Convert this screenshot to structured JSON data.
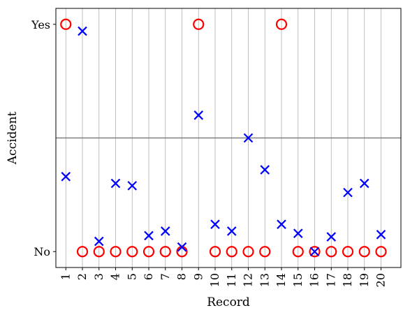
{
  "chart_data": {
    "type": "scatter",
    "title": "",
    "xlabel": "Record",
    "ylabel": "Accident",
    "x_ticks": [
      "1",
      "2",
      "3",
      "4",
      "5",
      "6",
      "7",
      "8",
      "9",
      "10",
      "11",
      "12",
      "13",
      "14",
      "15",
      "16",
      "17",
      "18",
      "19",
      "20"
    ],
    "y_ticks": [
      {
        "value": 0,
        "label": "No"
      },
      {
        "value": 1,
        "label": "Yes"
      }
    ],
    "xlim": [
      0.4,
      21.2
    ],
    "ylim": [
      -0.07,
      1.07
    ],
    "grid": "vertical",
    "threshold": 0.5,
    "series": [
      {
        "marker": "circle",
        "color": "#ff0000",
        "x": [
          1,
          2,
          3,
          4,
          5,
          6,
          7,
          8,
          9,
          10,
          11,
          12,
          13,
          14,
          15,
          16,
          17,
          18,
          19,
          20
        ],
        "y": [
          1,
          0,
          0,
          0,
          0,
          0,
          0,
          0,
          1,
          0,
          0,
          0,
          0,
          1,
          0,
          0,
          0,
          0,
          0,
          0
        ]
      },
      {
        "marker": "x",
        "color": "#0000ff",
        "x": [
          1,
          2,
          3,
          4,
          5,
          6,
          7,
          8,
          9,
          10,
          11,
          12,
          13,
          14,
          15,
          16,
          17,
          18,
          19,
          20
        ],
        "y": [
          0.33,
          0.97,
          0.045,
          0.3,
          0.29,
          0.07,
          0.09,
          0.02,
          0.6,
          0.12,
          0.09,
          0.5,
          0.36,
          0.12,
          0.08,
          0.0,
          0.065,
          0.26,
          0.3,
          0.075
        ]
      }
    ]
  }
}
